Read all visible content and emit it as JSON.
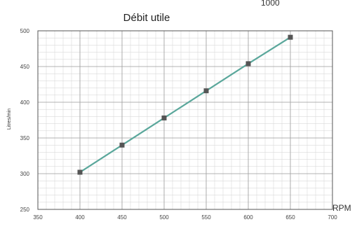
{
  "corner_text": "1000",
  "chart_data": {
    "type": "line",
    "title": "Débit utile",
    "xlabel": "RPM",
    "ylabel": "Litres/min",
    "xlim": [
      350,
      700
    ],
    "ylim": [
      250,
      500
    ],
    "x_ticks": [
      "350",
      "400",
      "450",
      "500",
      "550",
      "600",
      "650",
      "700"
    ],
    "y_ticks": [
      "250",
      "300",
      "350",
      "400",
      "450",
      "500"
    ],
    "grid": true,
    "line_color": "#5aa79b",
    "marker_color": "#555555",
    "series": [
      {
        "x": [
          400,
          450,
          500,
          550,
          600,
          650
        ],
        "y": [
          302,
          340,
          378,
          416,
          454,
          491
        ]
      }
    ]
  }
}
